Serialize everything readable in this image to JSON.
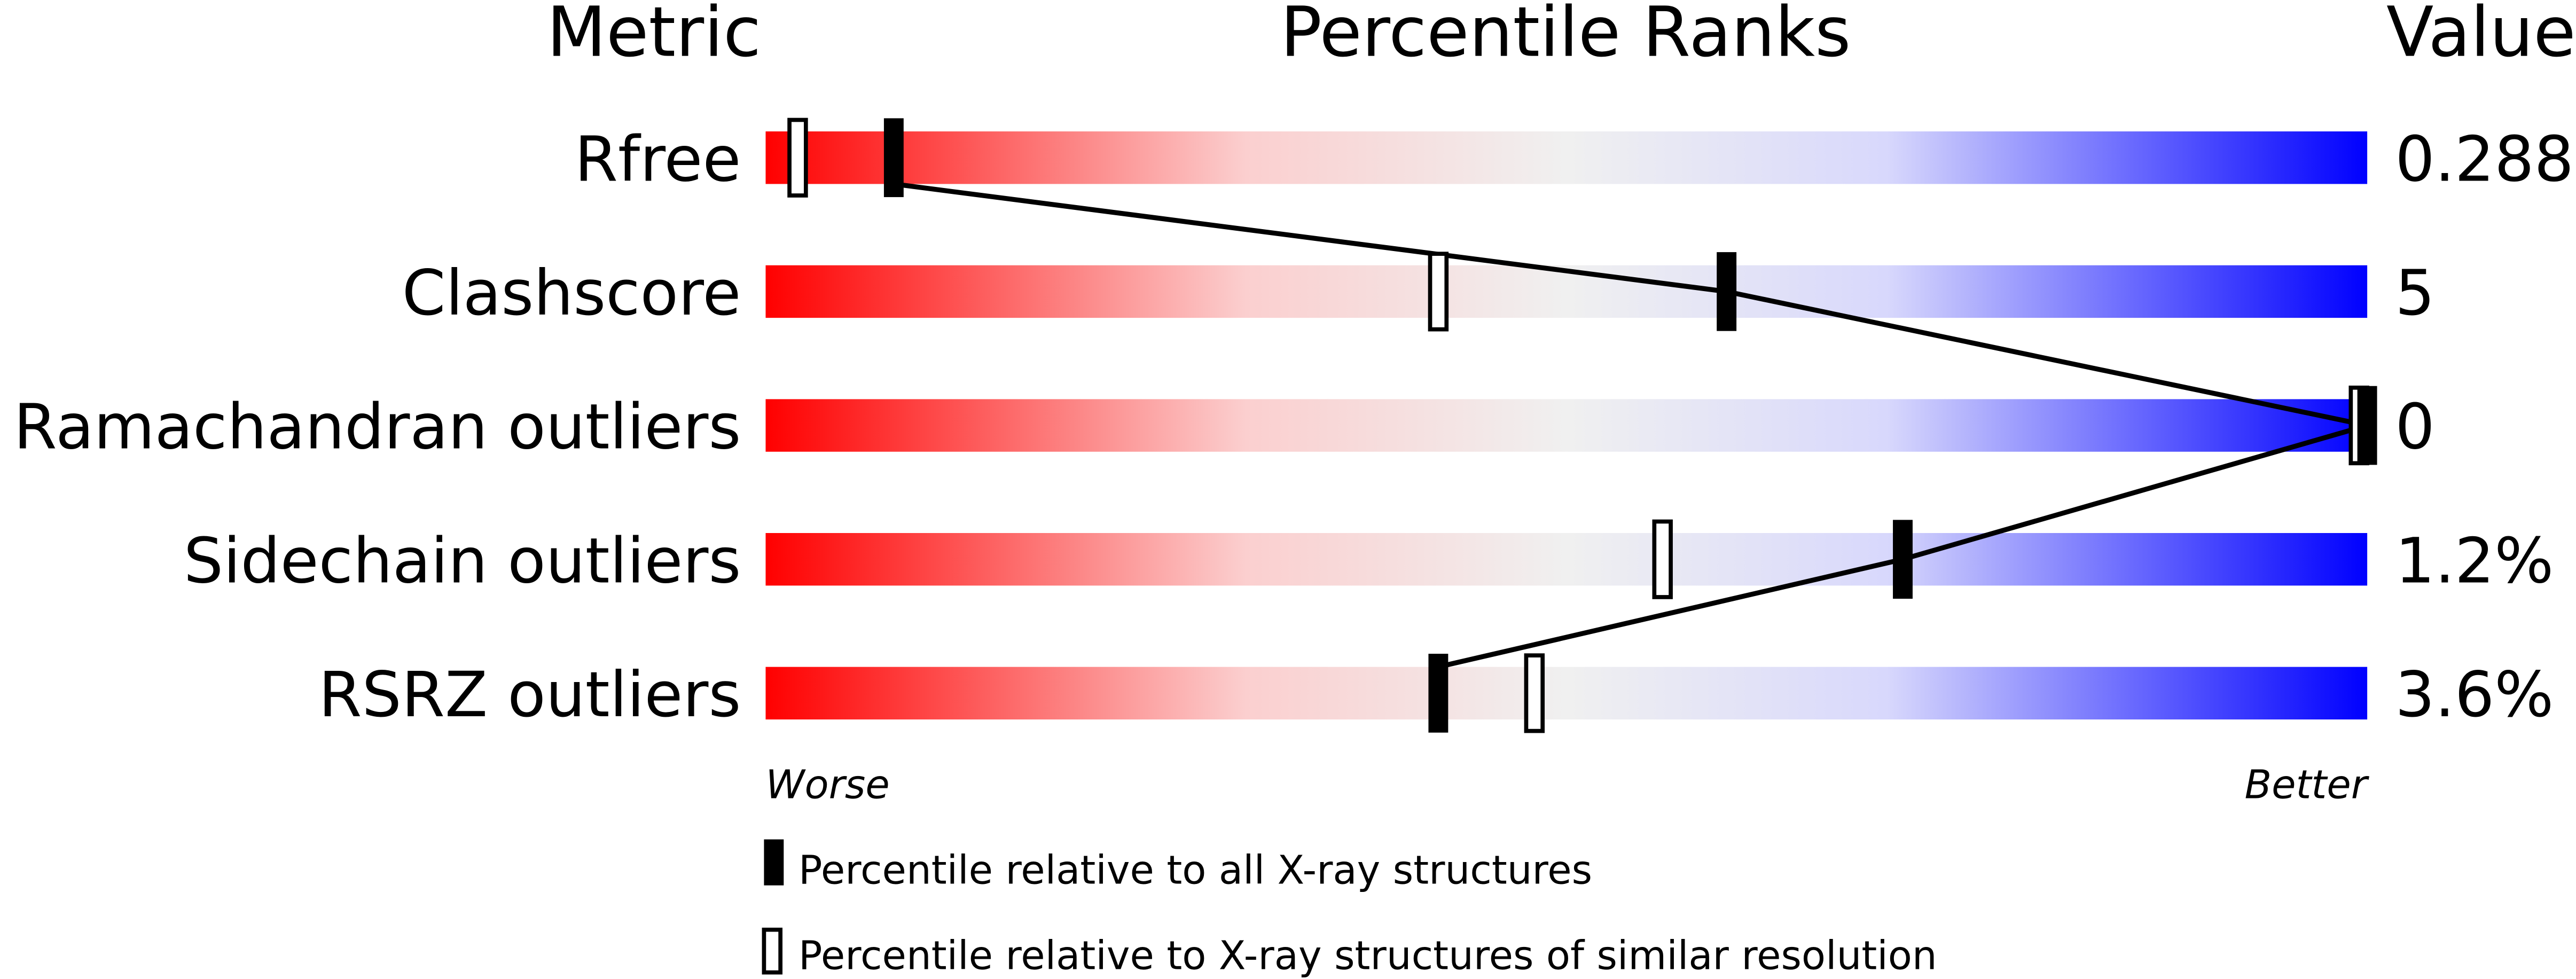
{
  "chart_data": {
    "type": "bar",
    "headers": {
      "metric": "Metric",
      "ranks": "Percentile Ranks",
      "value": "Value"
    },
    "xlim": [
      0,
      100
    ],
    "axis_labels": {
      "left": "Worse",
      "right": "Better"
    },
    "gradient_colors": [
      "#ff0000",
      "#fcd0d0",
      "#f0f0f0",
      "#d8d8fc",
      "#0000ff"
    ],
    "metrics": [
      {
        "name": "Rfree",
        "value": "0.288",
        "percentile_all": 8,
        "percentile_similar": 2
      },
      {
        "name": "Clashscore",
        "value": "5",
        "percentile_all": 60,
        "percentile_similar": 42
      },
      {
        "name": "Ramachandran outliers",
        "value": "0",
        "percentile_all": 100,
        "percentile_similar": 100
      },
      {
        "name": "Sidechain outliers",
        "value": "1.2%",
        "percentile_all": 71,
        "percentile_similar": 56
      },
      {
        "name": "RSRZ outliers",
        "value": "3.6%",
        "percentile_all": 42,
        "percentile_similar": 48
      }
    ],
    "legend": [
      {
        "marker": "filled",
        "label": "Percentile relative to all X-ray structures"
      },
      {
        "marker": "open",
        "label": "Percentile relative to X-ray structures of similar resolution"
      }
    ]
  }
}
